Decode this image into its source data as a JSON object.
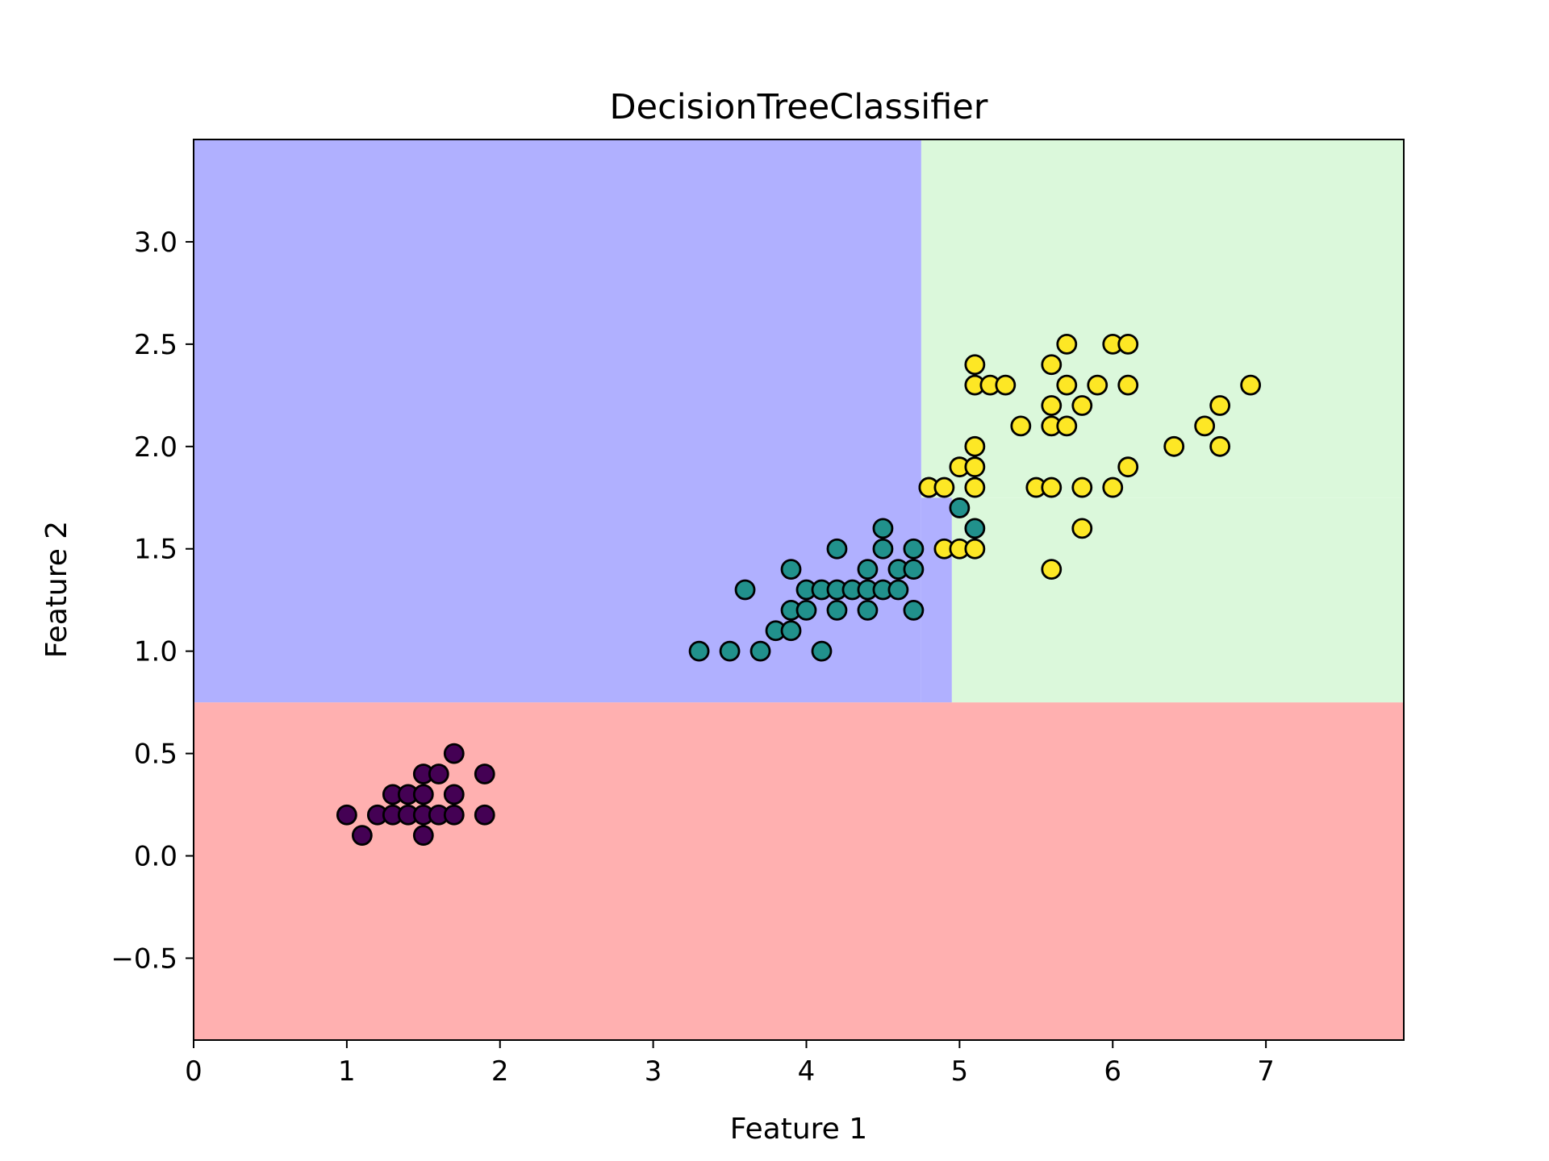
{
  "chart_data": {
    "type": "scatter",
    "title": "DecisionTreeClassifier",
    "xlabel": "Feature 1",
    "ylabel": "Feature 2",
    "xlim": [
      0,
      7.9
    ],
    "ylim": [
      -0.9,
      3.5
    ],
    "xticks": [
      0,
      1,
      2,
      3,
      4,
      5,
      6,
      7
    ],
    "yticks": [
      -0.5,
      0.0,
      0.5,
      1.0,
      1.5,
      2.0,
      2.5,
      3.0
    ],
    "xtick_labels": [
      "0",
      "1",
      "2",
      "3",
      "4",
      "5",
      "6",
      "7"
    ],
    "ytick_labels": [
      "−0.5",
      "0.0",
      "0.5",
      "1.0",
      "1.5",
      "2.0",
      "2.5",
      "3.0"
    ],
    "grid": false,
    "regions": [
      {
        "class": 0,
        "x": [
          0,
          7.9
        ],
        "y": [
          -0.9,
          0.75
        ],
        "color": "#ffb0b0"
      },
      {
        "class": 1,
        "x": [
          0,
          4.75
        ],
        "y": [
          0.75,
          3.5
        ],
        "color": "#b0b0ff"
      },
      {
        "class": 1,
        "x": [
          4.75,
          4.95
        ],
        "y": [
          0.75,
          1.75
        ],
        "color": "#b0b0ff"
      },
      {
        "class": 2,
        "x": [
          4.75,
          7.9
        ],
        "y": [
          1.75,
          3.5
        ],
        "color": "#dbf8db"
      },
      {
        "class": 2,
        "x": [
          4.95,
          7.9
        ],
        "y": [
          0.75,
          1.75
        ],
        "color": "#dbf8db"
      }
    ],
    "series": [
      {
        "class": 0,
        "color": "#440154",
        "x": [
          1.0,
          1.1,
          1.2,
          1.3,
          1.3,
          1.4,
          1.4,
          1.5,
          1.5,
          1.5,
          1.5,
          1.6,
          1.6,
          1.7,
          1.7,
          1.7,
          1.9,
          1.9
        ],
        "y": [
          0.2,
          0.1,
          0.2,
          0.2,
          0.3,
          0.2,
          0.3,
          0.1,
          0.2,
          0.3,
          0.4,
          0.2,
          0.4,
          0.2,
          0.3,
          0.5,
          0.2,
          0.4
        ]
      },
      {
        "class": 1,
        "color": "#21918c",
        "x": [
          3.3,
          3.5,
          3.6,
          3.7,
          3.8,
          3.9,
          3.9,
          3.9,
          4.0,
          4.0,
          4.1,
          4.1,
          4.2,
          4.2,
          4.2,
          4.3,
          4.4,
          4.4,
          4.4,
          4.5,
          4.5,
          4.5,
          4.6,
          4.6,
          4.7,
          4.7,
          4.7,
          4.8,
          5.0,
          5.1
        ],
        "y": [
          1.0,
          1.0,
          1.3,
          1.0,
          1.1,
          1.1,
          1.2,
          1.4,
          1.2,
          1.3,
          1.0,
          1.3,
          1.2,
          1.3,
          1.5,
          1.3,
          1.2,
          1.3,
          1.4,
          1.3,
          1.5,
          1.6,
          1.3,
          1.4,
          1.2,
          1.4,
          1.5,
          1.8,
          1.7,
          1.6
        ]
      },
      {
        "class": 2,
        "color": "#fde725",
        "x": [
          4.8,
          4.9,
          4.9,
          5.0,
          5.0,
          5.1,
          5.1,
          5.1,
          5.1,
          5.1,
          5.1,
          5.2,
          5.3,
          5.4,
          5.5,
          5.6,
          5.6,
          5.6,
          5.6,
          5.6,
          5.7,
          5.7,
          5.7,
          5.8,
          5.8,
          5.8,
          5.9,
          6.0,
          6.0,
          6.1,
          6.1,
          6.1,
          6.4,
          6.6,
          6.7,
          6.7,
          6.9
        ],
        "y": [
          1.8,
          1.8,
          1.5,
          1.5,
          1.9,
          1.5,
          1.8,
          1.9,
          2.0,
          2.3,
          2.4,
          2.3,
          2.3,
          2.1,
          1.8,
          1.4,
          1.8,
          2.1,
          2.2,
          2.4,
          2.1,
          2.3,
          2.5,
          1.6,
          1.8,
          2.2,
          2.3,
          1.8,
          2.5,
          1.9,
          2.3,
          2.5,
          2.0,
          2.1,
          2.0,
          2.2,
          2.3
        ]
      }
    ]
  }
}
